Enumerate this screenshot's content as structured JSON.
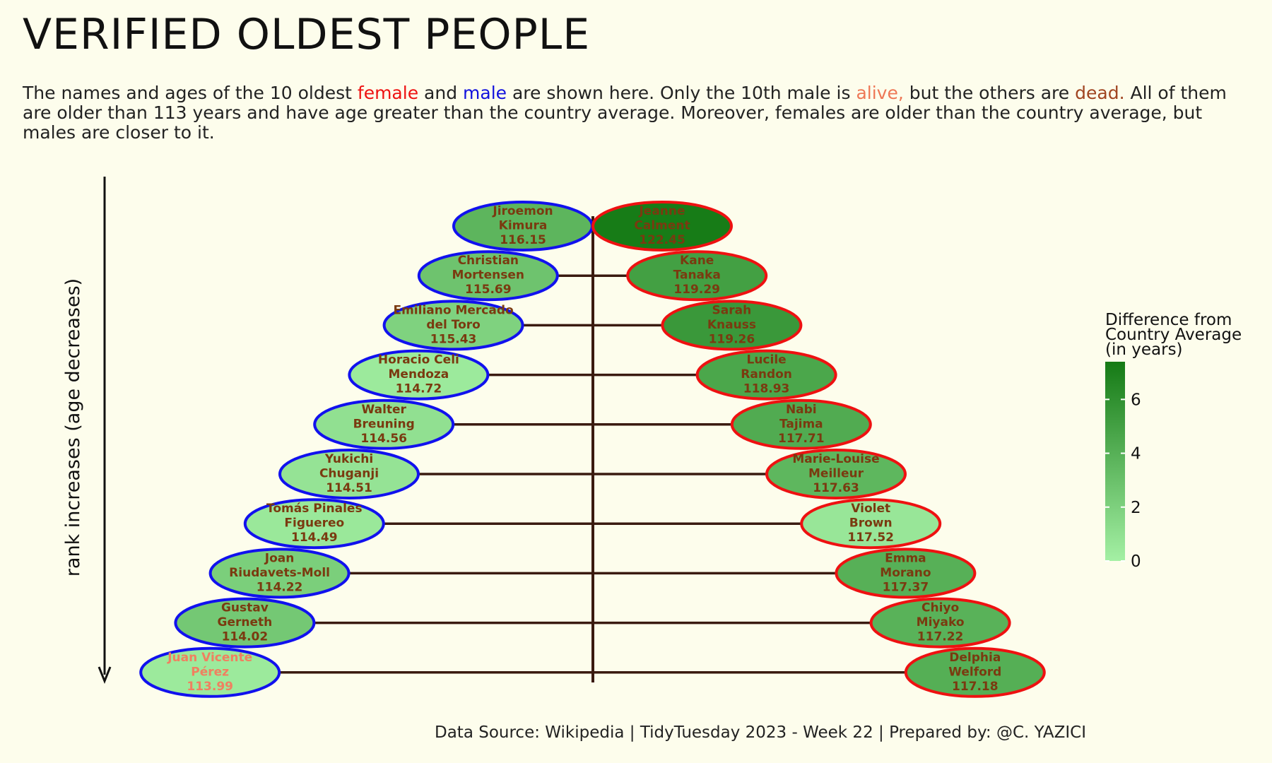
{
  "title": "VERIFIED OLDEST PEOPLE",
  "subtitle": {
    "p1": "The names and ages of the 10 oldest ",
    "female": "female",
    "p2": " and ",
    "male": "male",
    "p3": " are shown here. Only the 10th male is ",
    "alive": "alive,",
    "p4": " but the others are ",
    "dead": "dead.",
    "p5": " All of them are older than 113 years and have age greater than the country average. Moreover, females are older than the country average, but males are closer to it."
  },
  "caption": "Data Source: Wikipedia | TidyTuesday 2023 - Week 22 | Prepared by: @C. YAZICI",
  "colors": {
    "background": "#fdfdec",
    "male_border": "#1111ee",
    "female_border": "#ee1111",
    "label_dead": "#7a3a10",
    "label_alive": "#f08060",
    "connector": "#3a1a10",
    "gradient_low": "#a4f0a4",
    "gradient_high": "#157a15"
  },
  "chart_data": {
    "type": "scatter",
    "ylabel": "rank increases (age decreases)",
    "legend": {
      "title": [
        "Difference from",
        "Country Average",
        "(in years)"
      ],
      "ticks": [
        0,
        2,
        4,
        6
      ],
      "range": [
        0,
        7.4
      ],
      "position": "right"
    },
    "male": [
      {
        "rank": 1,
        "name": [
          "Jiroemon",
          "Kimura"
        ],
        "age": "116.15",
        "diff": 3.7,
        "status": "dead"
      },
      {
        "rank": 2,
        "name": [
          "Christian",
          "Mortensen"
        ],
        "age": "115.69",
        "diff": 2.8,
        "status": "dead"
      },
      {
        "rank": 3,
        "name": [
          "Emiliano Mercado",
          "del Toro"
        ],
        "age": "115.43",
        "diff": 1.9,
        "status": "dead"
      },
      {
        "rank": 4,
        "name": [
          "Horacio Celi",
          "Mendoza"
        ],
        "age": "114.72",
        "diff": 0.4,
        "status": "dead"
      },
      {
        "rank": 5,
        "name": [
          "Walter",
          "Breuning"
        ],
        "age": "114.56",
        "diff": 1.0,
        "status": "dead"
      },
      {
        "rank": 6,
        "name": [
          "Yukichi",
          "Chuganji"
        ],
        "age": "114.51",
        "diff": 0.8,
        "status": "dead"
      },
      {
        "rank": 7,
        "name": [
          "Tomás Pinales",
          "Figuereo"
        ],
        "age": "114.49",
        "diff": 0.5,
        "status": "dead"
      },
      {
        "rank": 8,
        "name": [
          "Joan",
          "Riudavets-Moll"
        ],
        "age": "114.22",
        "diff": 2.1,
        "status": "dead"
      },
      {
        "rank": 9,
        "name": [
          "Gustav",
          "Gerneth"
        ],
        "age": "114.02",
        "diff": 2.5,
        "status": "dead"
      },
      {
        "rank": 10,
        "name": [
          "Juan Vicente",
          "Pérez"
        ],
        "age": "113.99",
        "diff": 0.4,
        "status": "alive"
      }
    ],
    "female": [
      {
        "rank": 1,
        "name": [
          "Jeanne",
          "Calment"
        ],
        "age": "122.45",
        "diff": 7.3,
        "status": "dead"
      },
      {
        "rank": 2,
        "name": [
          "Kane",
          "Tanaka"
        ],
        "age": "119.29",
        "diff": 5.0,
        "status": "dead"
      },
      {
        "rank": 3,
        "name": [
          "Sarah",
          "Knauss"
        ],
        "age": "119.26",
        "diff": 5.5,
        "status": "dead"
      },
      {
        "rank": 4,
        "name": [
          "Lucile",
          "Randon"
        ],
        "age": "118.93",
        "diff": 4.6,
        "status": "dead"
      },
      {
        "rank": 5,
        "name": [
          "Nabi",
          "Tajima"
        ],
        "age": "117.71",
        "diff": 4.3,
        "status": "dead"
      },
      {
        "rank": 6,
        "name": [
          "Marie-Louise",
          "Meilleur"
        ],
        "age": "117.63",
        "diff": 3.6,
        "status": "dead"
      },
      {
        "rank": 7,
        "name": [
          "Violet",
          "Brown"
        ],
        "age": "117.52",
        "diff": 0.6,
        "status": "dead"
      },
      {
        "rank": 8,
        "name": [
          "Emma",
          "Morano"
        ],
        "age": "117.37",
        "diff": 4.0,
        "status": "dead"
      },
      {
        "rank": 9,
        "name": [
          "Chiyo",
          "Miyako"
        ],
        "age": "117.22",
        "diff": 3.9,
        "status": "dead"
      },
      {
        "rank": 10,
        "name": [
          "Delphia",
          "Welford"
        ],
        "age": "117.18",
        "diff": 4.1,
        "status": "dead"
      }
    ]
  }
}
